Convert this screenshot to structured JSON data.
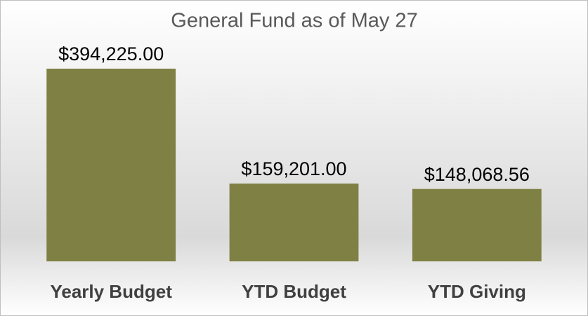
{
  "chart_data": {
    "type": "bar",
    "title": "General Fund as of May 27",
    "categories": [
      "Yearly Budget",
      "YTD Budget",
      "YTD Giving"
    ],
    "values": [
      394225,
      159201,
      148068.56
    ],
    "value_labels": [
      "$394,225.00",
      "$159,201.00",
      "$148,068.56"
    ],
    "color": "#7f8043"
  }
}
